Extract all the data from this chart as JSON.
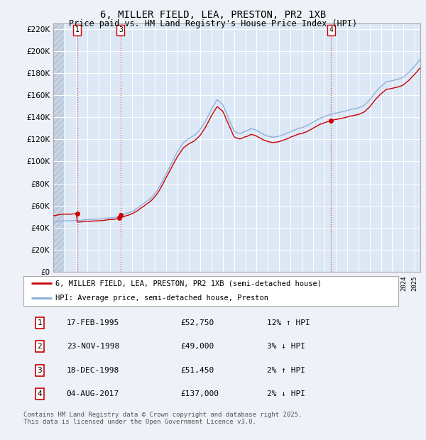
{
  "title1": "6, MILLER FIELD, LEA, PRESTON, PR2 1XB",
  "title2": "Price paid vs. HM Land Registry's House Price Index (HPI)",
  "background_color": "#eef2f8",
  "plot_bg_color": "#dce8f5",
  "ylim": [
    0,
    225000
  ],
  "yticks": [
    0,
    20000,
    40000,
    60000,
    80000,
    100000,
    120000,
    140000,
    160000,
    180000,
    200000,
    220000
  ],
  "xlim_start": 1993,
  "xlim_end": 2025.5,
  "sale_prices": [
    52750,
    49000,
    51450,
    137000
  ],
  "sale_years": [
    1995.125,
    1998.875,
    1998.958,
    2017.583
  ],
  "legend_line1": "6, MILLER FIELD, LEA, PRESTON, PR2 1XB (semi-detached house)",
  "legend_line2": "HPI: Average price, semi-detached house, Preston",
  "table_rows": [
    [
      "1",
      "17-FEB-1995",
      "£52,750",
      "12% ↑ HPI"
    ],
    [
      "2",
      "23-NOV-1998",
      "£49,000",
      "3% ↓ HPI"
    ],
    [
      "3",
      "18-DEC-1998",
      "£51,450",
      "2% ↑ HPI"
    ],
    [
      "4",
      "04-AUG-2017",
      "£137,000",
      "2% ↓ HPI"
    ]
  ],
  "footnote": "Contains HM Land Registry data © Crown copyright and database right 2025.\nThis data is licensed under the Open Government Licence v3.0.",
  "red_line_color": "#cc0000",
  "blue_line_color": "#88aadd"
}
